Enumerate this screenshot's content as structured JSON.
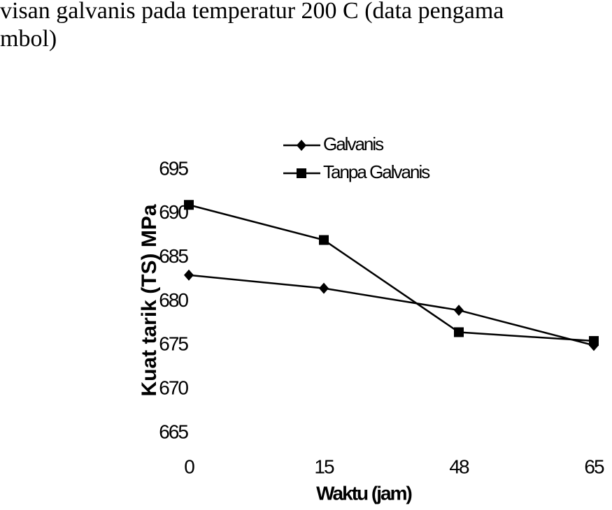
{
  "chart_data": {
    "type": "line",
    "caption": [
      "visan galvanis pada temperatur 200 C (data pengama",
      "mbol)"
    ],
    "x_label": "Waktu (jam)",
    "y_label": "Kuat tarik (TS) MPa",
    "categories": [
      "0",
      "15",
      "48",
      "65"
    ],
    "series": [
      {
        "name": "Galvanis",
        "color": "#000000",
        "marker": "diamond",
        "values": [
          683,
          681.5,
          679,
          675
        ]
      },
      {
        "name": "Tanpa Galvanis",
        "color": "#000000",
        "marker": "square",
        "values": [
          691,
          687,
          676.5,
          675.5
        ]
      }
    ],
    "ylim": [
      665,
      695
    ],
    "yticks": [
      665,
      670,
      675,
      680,
      685,
      690,
      695
    ],
    "grid": false,
    "legend": "top"
  }
}
